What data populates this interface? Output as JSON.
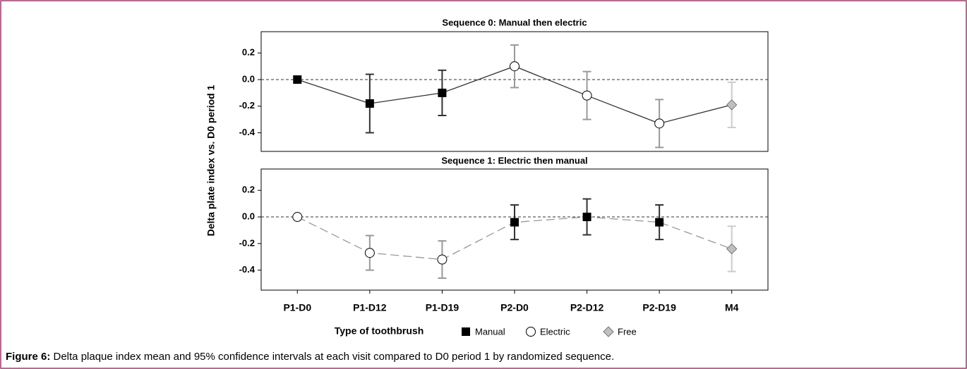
{
  "figure": {
    "ylabel": "Delta plate index vs. D0 period 1",
    "categories": [
      "P1-D0",
      "P1-D12",
      "P1-D19",
      "P2-D0",
      "P2-D12",
      "P2-D19",
      "M4"
    ],
    "legend": {
      "title": "Type of toothbrush",
      "entries": [
        {
          "name": "Manual",
          "marker": "square",
          "fill": "#000000",
          "bar_color": "#333333"
        },
        {
          "name": "Electric",
          "marker": "circle",
          "fill": "#ffffff",
          "bar_color": "#999999"
        },
        {
          "name": "Free",
          "marker": "diamond",
          "fill": "#c0c0c0",
          "bar_color": "#cccccc"
        }
      ]
    }
  },
  "chart_data": [
    {
      "type": "line",
      "title": "Sequence 0: Manual then electric",
      "ylim": [
        -0.54,
        0.36
      ],
      "yticks": [
        0.2,
        {
          "value": 0,
          "label": "0.0"
        },
        -0.2,
        -0.4
      ],
      "series": [
        {
          "values": [
            0,
            -0.18,
            -0.1,
            0.1,
            -0.12,
            -0.33,
            -0.19
          ],
          "errors": [
            null,
            0.22,
            0.17,
            0.16,
            0.18,
            0.18,
            0.17
          ],
          "groups": [
            0,
            0,
            0,
            1,
            1,
            1,
            2
          ],
          "color": "#333333",
          "dashed": false
        }
      ]
    },
    {
      "type": "line",
      "title": "Sequence 1: Electric then manual",
      "ylim": [
        -0.55,
        0.36
      ],
      "yticks": [
        0.2,
        {
          "value": 0,
          "label": "0.0"
        },
        -0.2,
        -0.4
      ],
      "series": [
        {
          "values": [
            0,
            -0.27,
            -0.32,
            -0.04,
            0,
            -0.04,
            -0.24
          ],
          "errors": [
            null,
            0.13,
            0.14,
            0.13,
            0.135,
            0.13,
            0.17
          ],
          "groups": [
            1,
            1,
            1,
            0,
            0,
            0,
            2
          ],
          "color": "#999999",
          "dashed": true
        }
      ]
    }
  ],
  "caption": {
    "label": "Figure 6:",
    "text": " Delta plaque index mean and 95% confidence intervals at each visit compared to D0 period 1 by randomized sequence."
  }
}
